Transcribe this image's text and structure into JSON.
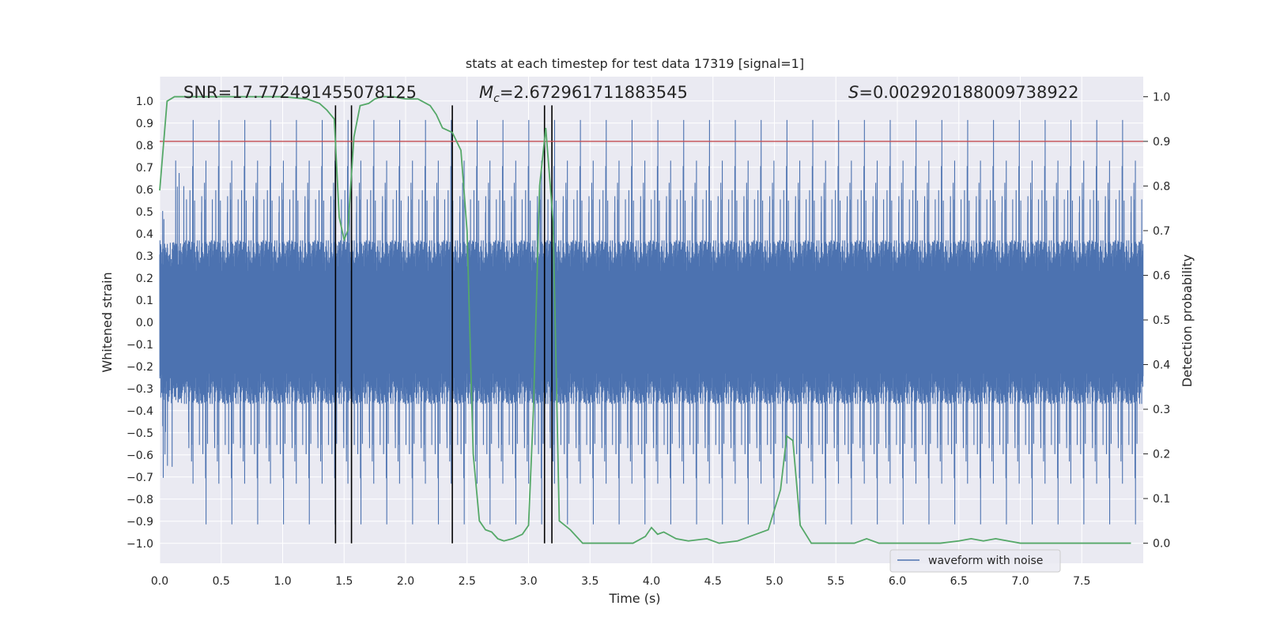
{
  "chart_data": {
    "type": "line",
    "title": "stats at each timestep for test data 17319 [signal=1]",
    "xlabel": "Time (s)",
    "ylabel": "Whitened strain",
    "y2label": "Detection probability",
    "xlim": [
      0.0,
      8.0
    ],
    "ylim": [
      -1.09,
      1.11
    ],
    "y2lim": [
      -0.045,
      1.045
    ],
    "x_ticks": [
      "0.0",
      "0.5",
      "1.0",
      "1.5",
      "2.0",
      "2.5",
      "3.0",
      "3.5",
      "4.0",
      "4.5",
      "5.0",
      "5.5",
      "6.0",
      "6.5",
      "7.0",
      "7.5"
    ],
    "y_ticks": [
      "1.0",
      "0.9",
      "0.8",
      "0.7",
      "0.6",
      "0.5",
      "0.4",
      "0.3",
      "0.2",
      "0.1",
      "0.0",
      "-0.1",
      "-0.2",
      "-0.3",
      "-0.4",
      "-0.5",
      "-0.6",
      "-0.7",
      "-0.8",
      "-0.9",
      "-1.0"
    ],
    "y2_ticks": [
      "1.0",
      "0.9",
      "0.8",
      "0.7",
      "0.6",
      "0.5",
      "0.4",
      "0.3",
      "0.2",
      "0.1",
      "0.0"
    ],
    "annotations": {
      "snr": "SNR=17.772491455078125",
      "mc_symbol": "M",
      "mc_sub": "c",
      "mc_value": "=2.672961711883545",
      "s_symbol": "S",
      "s_value": "=0.002920188009738922"
    },
    "threshold_probability": 0.9,
    "vertical_lines_x": [
      1.43,
      1.56,
      2.38,
      3.13,
      3.19
    ],
    "vertical_lines_range": [
      -1.0,
      0.98
    ],
    "legend": {
      "entries": [
        "waveform with noise"
      ],
      "location": "lower center-right"
    },
    "series": [
      {
        "name": "waveform with noise",
        "color": "#4c72b0",
        "axis": "left",
        "kind": "noise",
        "samples": 8000,
        "core_amplitude": 0.37,
        "spike_amplitude_max": 0.96
      },
      {
        "name": "detection probability",
        "color": "#55a868",
        "axis": "right",
        "x": [
          0.0,
          0.06,
          0.12,
          0.2,
          0.4,
          0.8,
          1.0,
          1.2,
          1.3,
          1.36,
          1.42,
          1.46,
          1.5,
          1.53,
          1.58,
          1.63,
          1.7,
          1.75,
          1.8,
          1.9,
          2.0,
          2.1,
          2.2,
          2.25,
          2.3,
          2.38,
          2.45,
          2.5,
          2.55,
          2.6,
          2.65,
          2.7,
          2.75,
          2.8,
          2.87,
          2.95,
          3.0,
          3.04,
          3.09,
          3.14,
          3.2,
          3.25,
          3.34,
          3.44,
          3.5,
          3.65,
          3.85,
          3.95,
          4.0,
          4.05,
          4.1,
          4.2,
          4.3,
          4.45,
          4.55,
          4.7,
          4.8,
          4.95,
          5.05,
          5.1,
          5.15,
          5.21,
          5.3,
          5.5,
          5.65,
          5.75,
          5.85,
          6.0,
          6.2,
          6.35,
          6.5,
          6.6,
          6.7,
          6.8,
          6.9,
          7.0,
          7.3,
          7.55,
          7.7,
          7.9
        ],
        "y": [
          0.79,
          0.99,
          1.0,
          1.0,
          1.0,
          1.0,
          1.0,
          0.995,
          0.985,
          0.97,
          0.95,
          0.73,
          0.68,
          0.7,
          0.91,
          0.98,
          0.985,
          0.995,
          1.0,
          1.0,
          0.995,
          0.995,
          0.98,
          0.96,
          0.93,
          0.92,
          0.88,
          0.7,
          0.2,
          0.05,
          0.03,
          0.025,
          0.01,
          0.005,
          0.01,
          0.02,
          0.04,
          0.3,
          0.8,
          0.93,
          0.72,
          0.05,
          0.03,
          0.0,
          0.0,
          0.0,
          0.0,
          0.015,
          0.035,
          0.02,
          0.025,
          0.01,
          0.005,
          0.01,
          0.0,
          0.005,
          0.015,
          0.03,
          0.12,
          0.24,
          0.23,
          0.04,
          0.0,
          0.0,
          0.0,
          0.01,
          0.0,
          0.0,
          0.0,
          0.0,
          0.005,
          0.01,
          0.005,
          0.01,
          0.005,
          0.0,
          0.0,
          0.0,
          0.0,
          0.0
        ]
      },
      {
        "name": "threshold",
        "color": "#c44e52",
        "axis": "right",
        "y_constant": 0.9
      }
    ]
  }
}
